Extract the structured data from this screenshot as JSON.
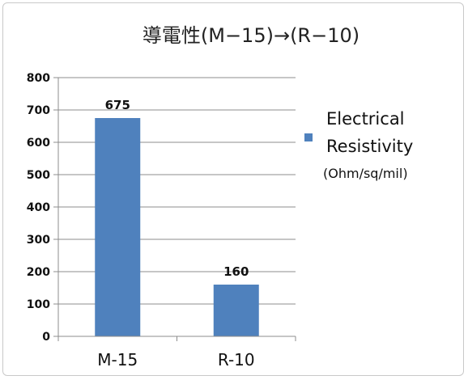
{
  "chart_data": {
    "type": "bar",
    "title": "導電性(M−15)→(R−10)",
    "categories": [
      "M-15",
      "R-10"
    ],
    "series": [
      {
        "name": "Electrical Resistivity (Ohm/sq/mil)",
        "values": [
          675,
          160
        ]
      }
    ],
    "data_labels": [
      "675",
      "160"
    ],
    "ylim": [
      0,
      800
    ],
    "yticks": [
      0,
      100,
      200,
      300,
      400,
      500,
      600,
      700,
      800
    ],
    "grid": true,
    "legend_position": "right",
    "legend": {
      "line1": "Electrical",
      "line2": "Resistivity",
      "line3": "(Ohm/sq/mil)"
    },
    "bar_color": "#4f81bd",
    "grid_color": "#8c8c8c",
    "axis_color": "#8c8c8c"
  }
}
